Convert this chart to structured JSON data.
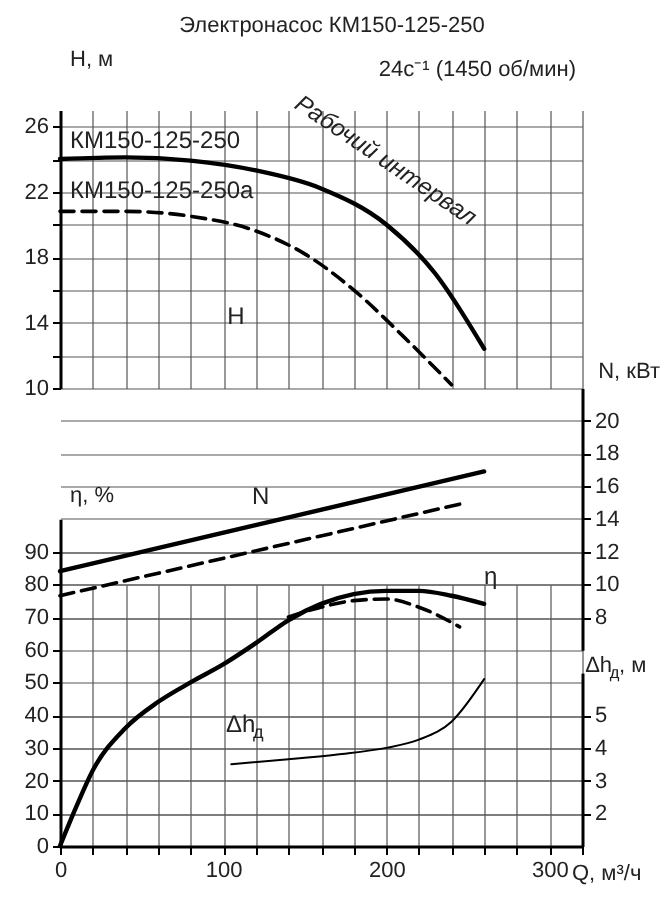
{
  "chart_data": [
    {
      "type": "line",
      "title": "Электронасос КМ150-125-250",
      "subtitle": "24с⁻¹ (1450 об/мин)",
      "ylabel": "H, м",
      "xlim": [
        0,
        320
      ],
      "xticks": [
        0,
        20,
        40,
        60,
        80,
        100,
        120,
        140,
        160,
        180,
        200,
        220,
        240,
        260,
        280,
        300,
        320
      ],
      "tick_labels": "y",
      "ylim": [
        10,
        27
      ],
      "yticks": [
        10,
        {
          "value": 12,
          "label": null
        },
        14,
        {
          "value": 16,
          "label": null
        },
        18,
        {
          "value": 20,
          "label": null
        },
        22,
        {
          "value": 24,
          "label": null
        },
        26
      ],
      "grid": true,
      "series": [
        {
          "name": "КМ150-125-250",
          "color": "#000000",
          "line_style": "solid",
          "x": [
            0,
            40,
            80,
            120,
            160,
            200,
            230,
            260
          ],
          "values": [
            24,
            24.1,
            23.9,
            23.3,
            22.2,
            20,
            17,
            12.4
          ]
        },
        {
          "name": "КМ150-125-250а",
          "color": "#000000",
          "line_style": "dashed",
          "x": [
            0,
            40,
            80,
            120,
            150,
            180,
            210,
            240
          ],
          "values": [
            20.8,
            20.8,
            20.5,
            19.6,
            18.2,
            16,
            13.2,
            10.2
          ]
        }
      ],
      "annotations": [
        "Рабочий интервал",
        "H"
      ]
    },
    {
      "type": "line",
      "xlabel": "Q, м³/ч",
      "ylabel": "η, %",
      "y2label": "N, кВт",
      "y3label": "Δh$_{д}$, м",
      "xlim": [
        0,
        320
      ],
      "xticks": [
        0,
        {
          "value": 20,
          "label": null
        },
        {
          "value": 40,
          "label": null
        },
        {
          "value": 60,
          "label": null
        },
        {
          "value": 80,
          "label": null
        },
        100,
        {
          "value": 120,
          "label": null
        },
        {
          "value": 140,
          "label": null
        },
        {
          "value": 160,
          "label": null
        },
        {
          "value": 180,
          "label": null
        },
        200,
        {
          "value": 220,
          "label": null
        },
        {
          "value": 240,
          "label": null
        },
        {
          "value": 260,
          "label": null
        },
        {
          "value": 280,
          "label": null
        },
        300,
        {
          "value": 320,
          "label": null
        }
      ],
      "ylim": [
        0,
        100
      ],
      "yticks": [
        0,
        10,
        20,
        30,
        40,
        50,
        60,
        70,
        80,
        90
      ],
      "y2lim": [
        6,
        22
      ],
      "y2ticks": [
        8,
        10,
        12,
        14,
        16,
        18,
        20
      ],
      "y3lim": [
        1,
        6.3
      ],
      "y3ticks": [
        2,
        3,
        4,
        5
      ],
      "grid": true,
      "series": [
        {
          "name": "N",
          "color": "#000000",
          "line_style": "solid",
          "axis": "y2",
          "x": [
            0,
            260
          ],
          "values": [
            10.8,
            16.9
          ]
        },
        {
          "color": "#000000",
          "line_style": "dashed",
          "axis": "y2",
          "x": [
            0,
            245
          ],
          "values": [
            9.3,
            14.9
          ]
        },
        {
          "name": "η",
          "color": "#000000",
          "line_style": "solid",
          "x": [
            0,
            10,
            20,
            40,
            60,
            80,
            100,
            120,
            140,
            160,
            180,
            200,
            220,
            240,
            260
          ],
          "values": [
            0,
            12,
            23,
            36,
            44,
            50,
            55.5,
            62,
            69,
            74,
            77,
            78,
            78,
            76.5,
            74
          ]
        },
        {
          "color": "#000000",
          "line_style": "dashed",
          "x": [
            140,
            160,
            180,
            200,
            220,
            245
          ],
          "values": [
            70,
            73,
            75,
            75.5,
            73,
            67
          ]
        },
        {
          "name": "Δh$_{д}$",
          "color": "#000000",
          "line_style": "solid",
          "axis": "y3",
          "x": [
            105,
            140,
            170,
            200,
            220,
            240,
            260
          ],
          "values": [
            3.5,
            3.65,
            3.8,
            4.0,
            4.25,
            4.8,
            6.1
          ]
        }
      ]
    }
  ]
}
